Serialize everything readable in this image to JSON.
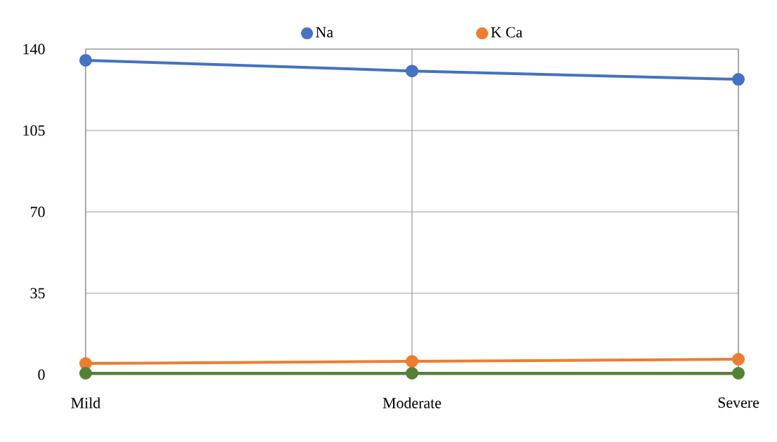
{
  "chart_data": {
    "type": "line",
    "categories": [
      "Mild",
      "Moderate",
      "Severe"
    ],
    "series": [
      {
        "name": "Na",
        "color": "#4472c4",
        "values": [
          135.2,
          130.6,
          127.0
        ]
      },
      {
        "name": "K Ca",
        "color": "#ed7d31",
        "values": [
          4.8,
          5.7,
          6.6
        ]
      },
      {
        "color": "#548235",
        "values": [
          0.6,
          0.6,
          0.6
        ]
      }
    ],
    "ylim": [
      0,
      140
    ],
    "yticks": [
      0,
      35,
      70,
      105,
      140
    ],
    "grid": true,
    "legend": "top",
    "marker": "circle",
    "line_style": "solid"
  }
}
